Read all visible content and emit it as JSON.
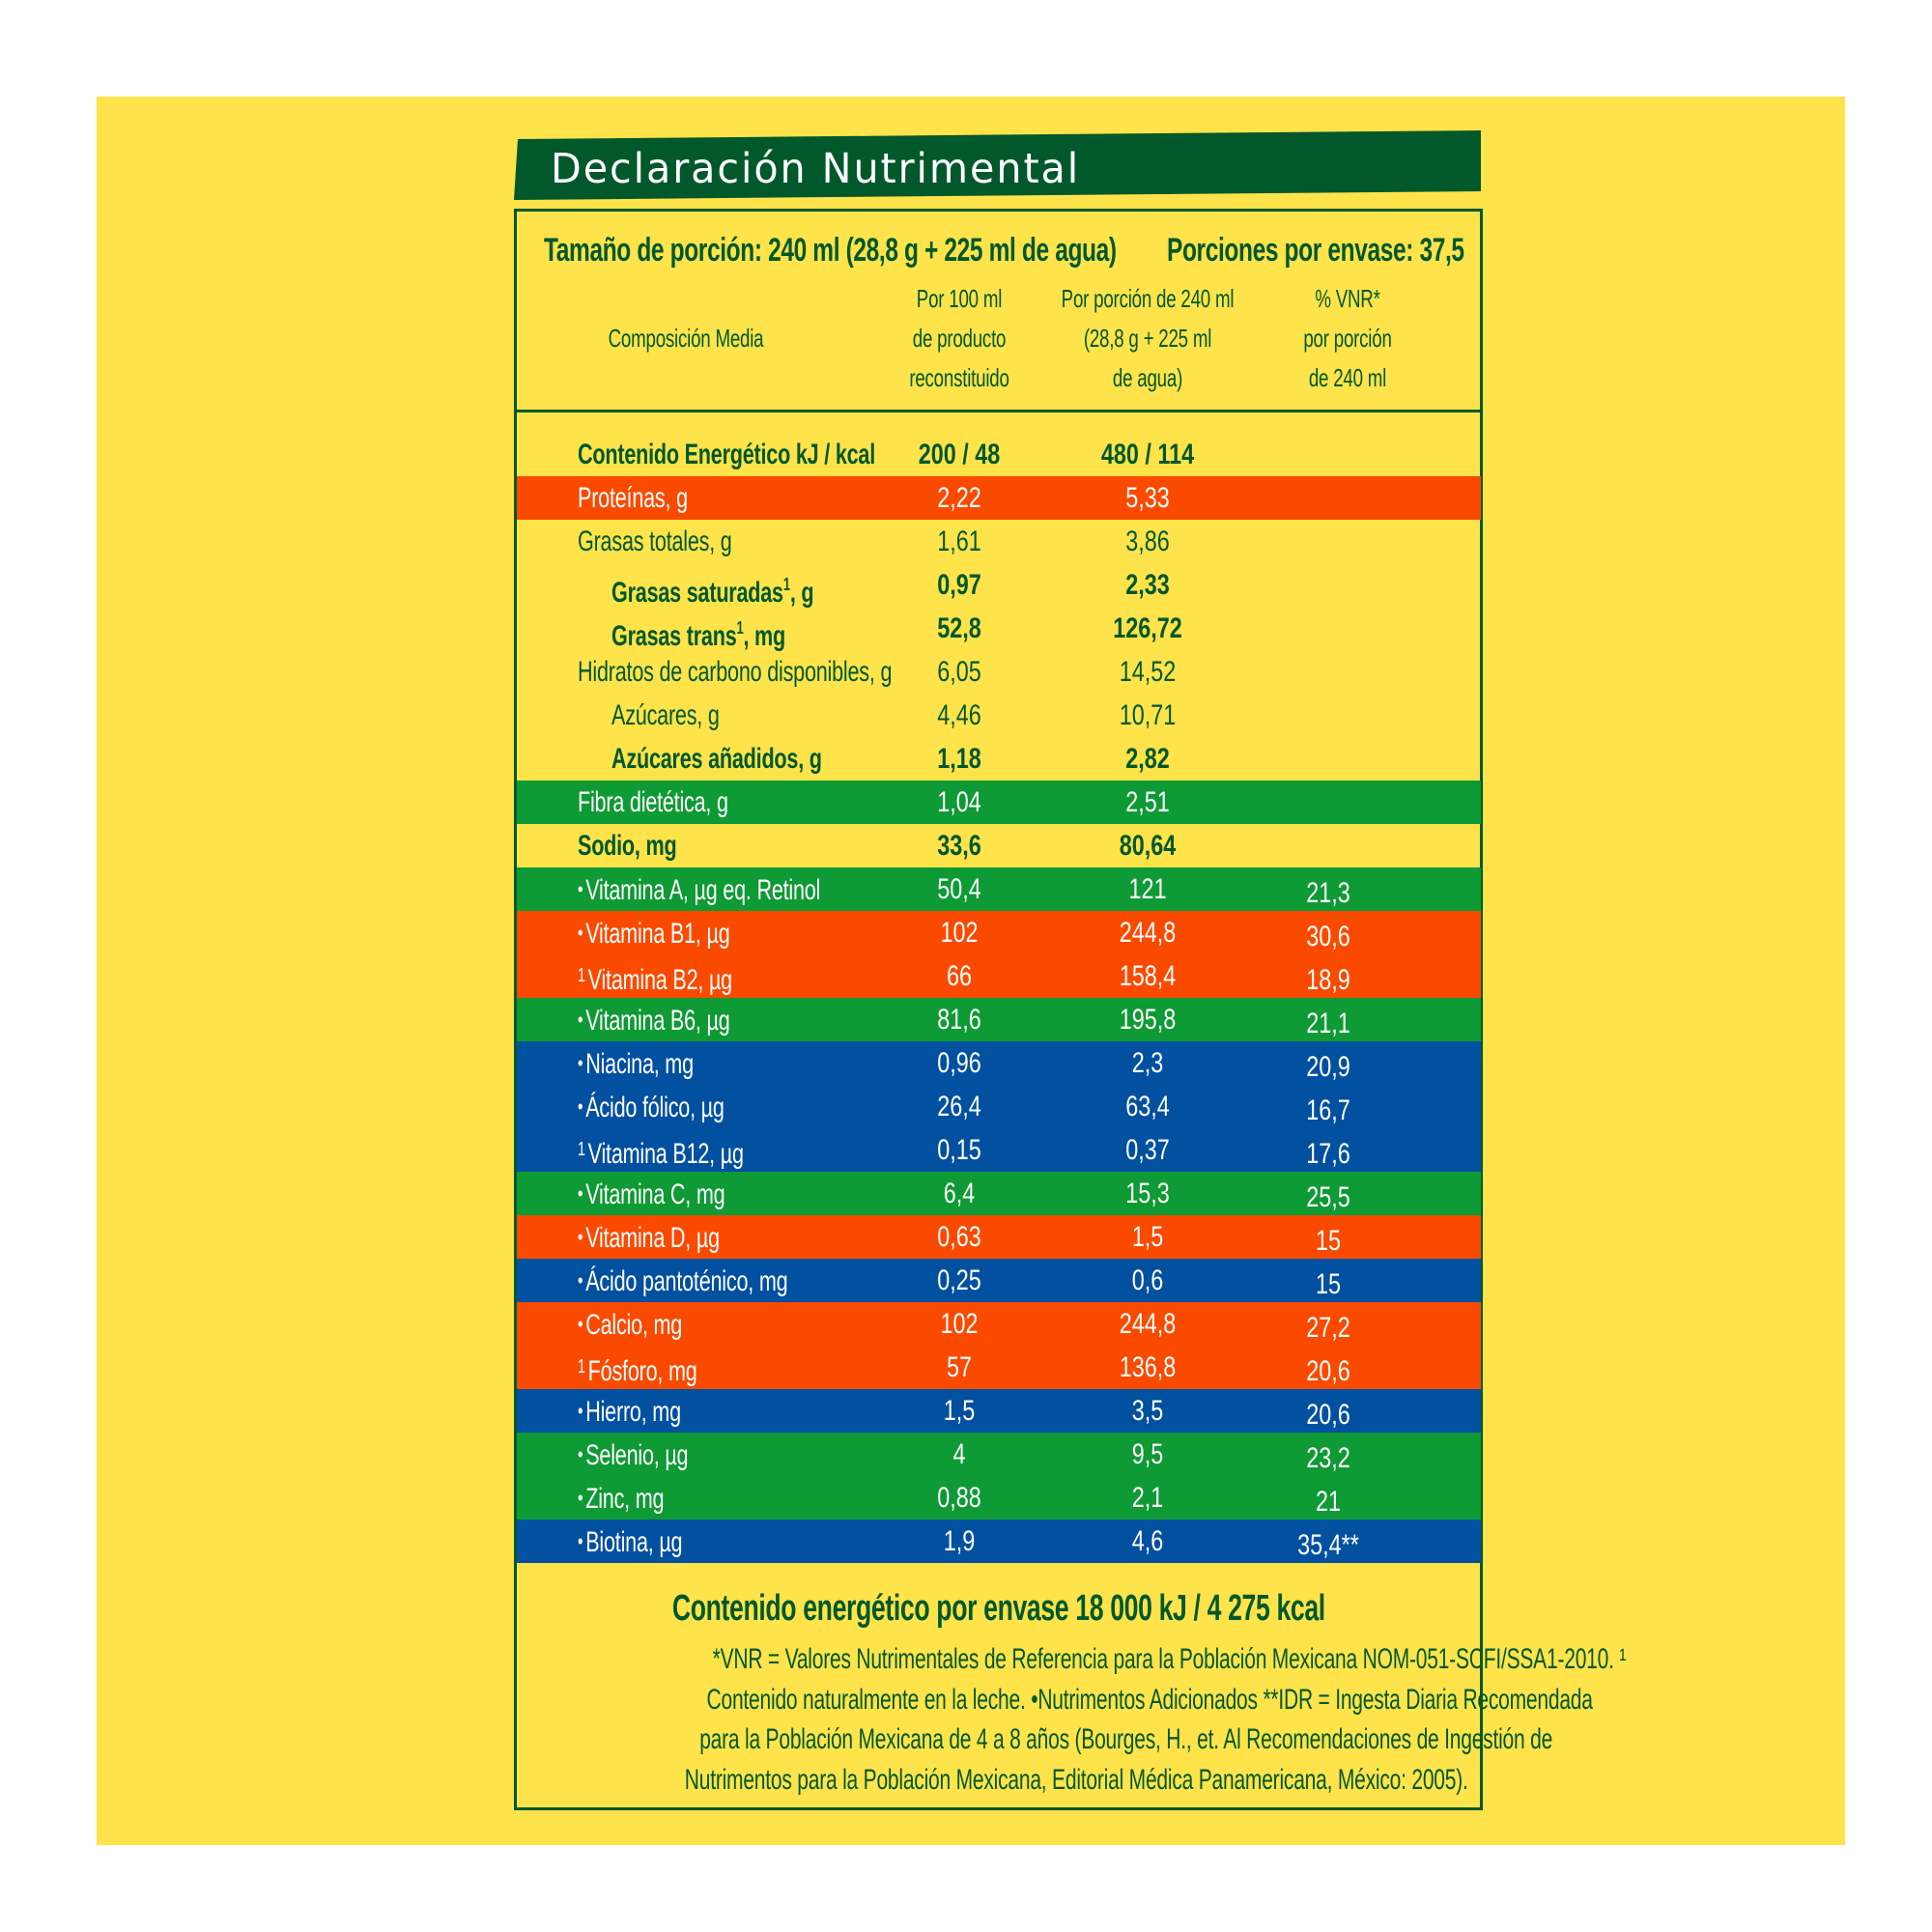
{
  "colors": {
    "background": "#FFFFFF",
    "panel_yellow": "#FFE34A",
    "dark_green": "#00582B",
    "band_orange": "#FA4A00",
    "band_green": "#0E9A34",
    "band_blue": "#0250A0",
    "band_text": "#FFFFFF"
  },
  "title": "Declaración Nutrimental",
  "serving": {
    "size": "Tamaño de porción: 240 ml (28,8 g + 225 ml de agua)",
    "count": "Porciones por envase: 37,5"
  },
  "columns": {
    "label": "Composición Media",
    "per100": [
      "Por 100 ml",
      "de producto",
      "reconstituido"
    ],
    "perServing": [
      "Por porción de 240 ml",
      "(28,8 g + 225 ml",
      "de agua)"
    ],
    "vnr": [
      "% VNR*",
      "por porción",
      "de 240 ml"
    ]
  },
  "rows": [
    {
      "label": "Contenido Energético kJ / kcal",
      "per100": "200 / 48",
      "perServing": "480 / 114",
      "vnr": "",
      "band": "yellow",
      "bold": true,
      "indent": false,
      "marker": ""
    },
    {
      "label": "Proteínas, g",
      "per100": "2,22",
      "perServing": "5,33",
      "vnr": "",
      "band": "orange",
      "bold": false,
      "indent": false,
      "marker": ""
    },
    {
      "label": "Grasas totales, g",
      "per100": "1,61",
      "perServing": "3,86",
      "vnr": "",
      "band": "yellow",
      "bold": false,
      "indent": false,
      "marker": ""
    },
    {
      "label": "Grasas saturadas",
      "label_sup": "1",
      "label_tail": ", g",
      "per100": "0,97",
      "perServing": "2,33",
      "vnr": "",
      "band": "yellow",
      "bold": true,
      "indent": true,
      "marker": ""
    },
    {
      "label": "Grasas trans",
      "label_sup": "1",
      "label_tail": ", mg",
      "per100": "52,8",
      "perServing": "126,72",
      "vnr": "",
      "band": "yellow",
      "bold": true,
      "indent": true,
      "marker": ""
    },
    {
      "label": "Hidratos de carbono disponibles, g",
      "per100": "6,05",
      "perServing": "14,52",
      "vnr": "",
      "band": "yellow",
      "bold": false,
      "indent": false,
      "marker": ""
    },
    {
      "label": "Azúcares, g",
      "per100": "4,46",
      "perServing": "10,71",
      "vnr": "",
      "band": "yellow",
      "bold": false,
      "indent": true,
      "marker": ""
    },
    {
      "label": "Azúcares añadidos, g",
      "per100": "1,18",
      "perServing": "2,82",
      "vnr": "",
      "band": "yellow",
      "bold": true,
      "indent": true,
      "marker": ""
    },
    {
      "label": "Fibra dietética, g",
      "per100": "1,04",
      "perServing": "2,51",
      "vnr": "",
      "band": "green",
      "bold": false,
      "indent": false,
      "marker": ""
    },
    {
      "label": "Sodio, mg",
      "per100": "33,6",
      "perServing": "80,64",
      "vnr": "",
      "band": "yellow",
      "bold": true,
      "indent": false,
      "marker": ""
    },
    {
      "label": "Vitamina A, µg eq. Retinol",
      "per100": "50,4",
      "perServing": "121",
      "vnr": "21,3",
      "band": "green",
      "bold": false,
      "indent": false,
      "marker": "•"
    },
    {
      "label": "Vitamina B1, µg",
      "per100": "102",
      "perServing": "244,8",
      "vnr": "30,6",
      "band": "orange",
      "bold": false,
      "indent": false,
      "marker": "•"
    },
    {
      "label": "Vitamina B2, µg",
      "per100": "66",
      "perServing": "158,4",
      "vnr": "18,9",
      "band": "orange",
      "bold": false,
      "indent": false,
      "marker": "1"
    },
    {
      "label": "Vitamina B6, µg",
      "per100": "81,6",
      "perServing": "195,8",
      "vnr": "21,1",
      "band": "green",
      "bold": false,
      "indent": false,
      "marker": "•"
    },
    {
      "label": "Niacina, mg",
      "per100": "0,96",
      "perServing": "2,3",
      "vnr": "20,9",
      "band": "blue",
      "bold": false,
      "indent": false,
      "marker": "•"
    },
    {
      "label": "Ácido fólico, µg",
      "per100": "26,4",
      "perServing": "63,4",
      "vnr": "16,7",
      "band": "blue",
      "bold": false,
      "indent": false,
      "marker": "•"
    },
    {
      "label": "Vitamina B12, µg",
      "per100": "0,15",
      "perServing": "0,37",
      "vnr": "17,6",
      "band": "blue",
      "bold": false,
      "indent": false,
      "marker": "1"
    },
    {
      "label": "Vitamina C, mg",
      "per100": "6,4",
      "perServing": "15,3",
      "vnr": "25,5",
      "band": "green",
      "bold": false,
      "indent": false,
      "marker": "•"
    },
    {
      "label": "Vitamina D, µg",
      "per100": "0,63",
      "perServing": "1,5",
      "vnr": "15",
      "band": "orange",
      "bold": false,
      "indent": false,
      "marker": "•"
    },
    {
      "label": "Ácido pantoténico, mg",
      "per100": "0,25",
      "perServing": "0,6",
      "vnr": "15",
      "band": "blue",
      "bold": false,
      "indent": false,
      "marker": "•"
    },
    {
      "label": "Calcio, mg",
      "per100": "102",
      "perServing": "244,8",
      "vnr": "27,2",
      "band": "orange",
      "bold": false,
      "indent": false,
      "marker": "•"
    },
    {
      "label": "Fósforo, mg",
      "per100": "57",
      "perServing": "136,8",
      "vnr": "20,6",
      "band": "orange",
      "bold": false,
      "indent": false,
      "marker": "1"
    },
    {
      "label": "Hierro, mg",
      "per100": "1,5",
      "perServing": "3,5",
      "vnr": "20,6",
      "band": "blue",
      "bold": false,
      "indent": false,
      "marker": "•"
    },
    {
      "label": "Selenio, µg",
      "per100": "4",
      "perServing": "9,5",
      "vnr": "23,2",
      "band": "green",
      "bold": false,
      "indent": false,
      "marker": "•"
    },
    {
      "label": "Zinc, mg",
      "per100": "0,88",
      "perServing": "2,1",
      "vnr": "21",
      "band": "green",
      "bold": false,
      "indent": false,
      "marker": "•"
    },
    {
      "label": "Biotina, µg",
      "per100": "1,9",
      "perServing": "4,6",
      "vnr": "35,4**",
      "band": "blue",
      "bold": false,
      "indent": false,
      "marker": "•"
    }
  ],
  "summary": "Contenido energético por envase 18 000 kJ / 4 275 kcal",
  "footnotes": [
    "*VNR = Valores Nutrimentales de Referencia para la Población Mexicana NOM-051-SCFI/SSA1-2010. ¹",
    "Contenido naturalmente en la leche. •Nutrimentos Adicionados    **IDR = Ingesta Diaria Recomendada",
    "para la Población Mexicana de 4 a 8 años (Bourges, H., et. Al Recomendaciones de Ingestión de",
    "Nutrimentos para la Población Mexicana, Editorial Médica Panamericana, México: 2005)."
  ]
}
